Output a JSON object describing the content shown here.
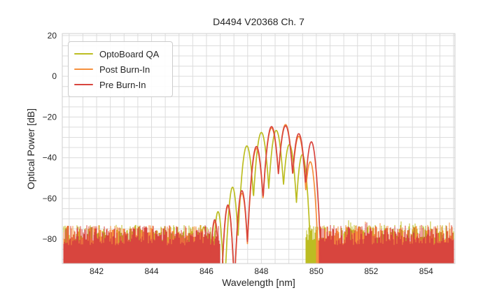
{
  "figure": {
    "background": "#ffffff",
    "text_color": "#262626",
    "spine_color": "#cfcfcf"
  },
  "chart_data": {
    "type": "line",
    "title": "D4494 V20368 Ch. 7",
    "xlabel": "Wavelength [nm]",
    "ylabel": "Optical Power [dB]",
    "xlim": [
      840.75,
      855.05
    ],
    "ylim": [
      -92,
      21
    ],
    "xticks": {
      "values": [
        842,
        844,
        846,
        848,
        850,
        852,
        854
      ],
      "labels": [
        "842",
        "844",
        "846",
        "848",
        "850",
        "852",
        "854"
      ]
    },
    "yticks": {
      "values": [
        20,
        0,
        -20,
        -40,
        -60,
        -80
      ],
      "labels": [
        "20",
        "0",
        "−20",
        "−40",
        "−60",
        "−80"
      ]
    },
    "grid": {
      "on": true,
      "x_step": 0.5,
      "y_step": 5,
      "color": "#dcdcdc"
    },
    "legend": {
      "position": "upper-left"
    },
    "noise_floor": {
      "top_min_dB": -83,
      "top_max_dB": -73,
      "bottom_dB": -92
    },
    "series": [
      {
        "name": "OptoBoard QA",
        "color": "#bcbd22",
        "modes_nm_dB_width": [
          [
            845.9,
            -74.0,
            0.034
          ],
          [
            846.42,
            -66.5,
            0.036
          ],
          [
            846.95,
            -54.5,
            0.04
          ],
          [
            847.47,
            -34.2,
            0.048
          ],
          [
            848.0,
            -27.6,
            0.051
          ],
          [
            848.54,
            -26.6,
            0.051
          ],
          [
            849.02,
            -33.5,
            0.048
          ],
          [
            849.49,
            -38.5,
            0.044
          ]
        ],
        "noise_bands_nm": [
          [
            840.78,
            846.3
          ],
          [
            849.62,
            855.02
          ]
        ]
      },
      {
        "name": "Post Burn-In",
        "color": "#f6903d",
        "modes_nm_dB_width": [
          [
            846.3,
            -71.5,
            0.034
          ],
          [
            846.78,
            -64.0,
            0.037
          ],
          [
            847.29,
            -57.5,
            0.04
          ],
          [
            847.82,
            -35.5,
            0.048
          ],
          [
            848.37,
            -25.4,
            0.052
          ],
          [
            848.88,
            -23.7,
            0.053
          ],
          [
            849.36,
            -29.5,
            0.05
          ],
          [
            849.78,
            -42.0,
            0.043
          ]
        ],
        "noise_bands_nm": [
          [
            840.78,
            846.35
          ],
          [
            850.0,
            855.02
          ]
        ]
      },
      {
        "name": "Pre Burn-In",
        "color": "#d8453e",
        "modes_nm_dB_width": [
          [
            846.3,
            -70.5,
            0.034
          ],
          [
            846.78,
            -63.2,
            0.037
          ],
          [
            847.29,
            -56.2,
            0.04
          ],
          [
            847.82,
            -34.5,
            0.048
          ],
          [
            848.37,
            -24.7,
            0.052
          ],
          [
            848.88,
            -24.3,
            0.053
          ],
          [
            849.36,
            -28.2,
            0.05
          ],
          [
            849.82,
            -32.2,
            0.046
          ]
        ],
        "noise_bands_nm": [
          [
            840.78,
            846.5
          ],
          [
            850.08,
            855.02
          ]
        ]
      }
    ]
  }
}
